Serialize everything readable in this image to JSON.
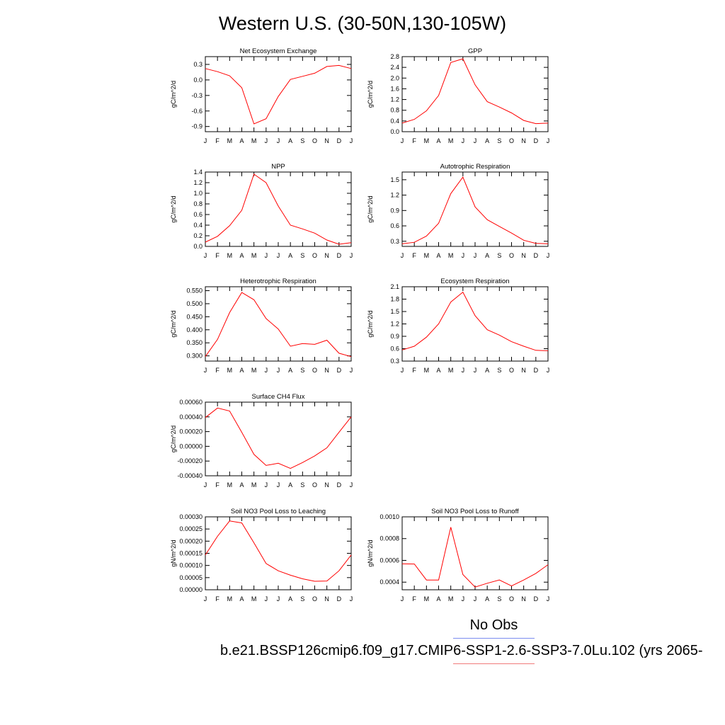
{
  "figure": {
    "title": "Western U.S. (30-50N,130-105W)",
    "legend": {
      "obs_label": "No Obs",
      "case_label": "b.e21.BSSP126cmip6.f09_g17.CMIP6-SSP1-2.6-SSP3-7.0Lu.102 (yrs 2065-",
      "obs_color": "#7b8cf0",
      "case_color": "#f07b7b"
    }
  },
  "chart_data": [
    {
      "type": "line",
      "title": "Net Ecosystem Exchange",
      "ylabel": "gC/m^2/d",
      "x": [
        "J",
        "F",
        "M",
        "A",
        "M",
        "J",
        "J",
        "A",
        "S",
        "O",
        "N",
        "D",
        "J"
      ],
      "ylim": [
        -1.0,
        0.45
      ],
      "yticks": [
        "0.3",
        "0.0",
        "-0.3",
        "-0.6",
        "-0.9"
      ],
      "yticks_values": [
        0.3,
        0.0,
        -0.3,
        -0.6,
        -0.9
      ],
      "series": [
        {
          "values": [
            0.22,
            0.16,
            0.08,
            -0.15,
            -0.85,
            -0.75,
            -0.32,
            0.01,
            0.07,
            0.13,
            0.26,
            0.28,
            0.22
          ],
          "color": "#ff0000"
        }
      ]
    },
    {
      "type": "line",
      "title": "GPP",
      "ylabel": "gC/m^2/d",
      "x": [
        "J",
        "F",
        "M",
        "A",
        "M",
        "J",
        "J",
        "A",
        "S",
        "O",
        "N",
        "D",
        "J"
      ],
      "ylim": [
        0.0,
        2.8
      ],
      "yticks": [
        "2.8",
        "2.4",
        "2.0",
        "1.6",
        "1.2",
        "0.8",
        "0.4",
        "0.0"
      ],
      "yticks_values": [
        2.8,
        2.4,
        2.0,
        1.6,
        1.2,
        0.8,
        0.4,
        0.0
      ],
      "series": [
        {
          "values": [
            0.32,
            0.46,
            0.78,
            1.35,
            2.58,
            2.72,
            1.75,
            1.12,
            0.92,
            0.7,
            0.42,
            0.3,
            0.32
          ],
          "color": "#ff0000"
        }
      ]
    },
    {
      "type": "line",
      "title": "NPP",
      "ylabel": "gC/m^2/d",
      "x": [
        "J",
        "F",
        "M",
        "A",
        "M",
        "J",
        "J",
        "A",
        "S",
        "O",
        "N",
        "D",
        "J"
      ],
      "ylim": [
        0.0,
        1.4
      ],
      "yticks": [
        "1.4",
        "1.2",
        "1.0",
        "0.8",
        "0.6",
        "0.4",
        "0.2",
        "0.0"
      ],
      "yticks_values": [
        1.4,
        1.2,
        1.0,
        0.8,
        0.6,
        0.4,
        0.2,
        0.0
      ],
      "series": [
        {
          "values": [
            0.08,
            0.19,
            0.39,
            0.68,
            1.36,
            1.2,
            0.76,
            0.4,
            0.33,
            0.25,
            0.12,
            0.04,
            0.07
          ],
          "color": "#ff0000"
        }
      ]
    },
    {
      "type": "line",
      "title": "Autotrophic Respiration",
      "ylabel": "gC/m^2/d",
      "x": [
        "J",
        "F",
        "M",
        "A",
        "M",
        "J",
        "J",
        "A",
        "S",
        "O",
        "N",
        "D",
        "J"
      ],
      "ylim": [
        0.2,
        1.65
      ],
      "yticks": [
        "1.5",
        "1.2",
        "0.9",
        "0.6",
        "0.3"
      ],
      "yticks_values": [
        1.5,
        1.2,
        0.9,
        0.6,
        0.3
      ],
      "series": [
        {
          "values": [
            0.25,
            0.28,
            0.4,
            0.65,
            1.23,
            1.55,
            0.97,
            0.72,
            0.59,
            0.46,
            0.32,
            0.26,
            0.25
          ],
          "color": "#ff0000"
        }
      ]
    },
    {
      "type": "line",
      "title": "Heterotrophic Respiration",
      "ylabel": "gC/m^2/d",
      "x": [
        "J",
        "F",
        "M",
        "A",
        "M",
        "J",
        "J",
        "A",
        "S",
        "O",
        "N",
        "D",
        "J"
      ],
      "ylim": [
        0.28,
        0.565
      ],
      "yticks": [
        "0.550",
        "0.500",
        "0.450",
        "0.400",
        "0.350",
        "0.300"
      ],
      "yticks_values": [
        0.55,
        0.5,
        0.45,
        0.4,
        0.35,
        0.3
      ],
      "series": [
        {
          "values": [
            0.297,
            0.363,
            0.466,
            0.543,
            0.515,
            0.443,
            0.403,
            0.337,
            0.347,
            0.344,
            0.36,
            0.31,
            0.297
          ],
          "color": "#ff0000"
        }
      ]
    },
    {
      "type": "line",
      "title": "Ecosystem Respiration",
      "ylabel": "gC/m^2/d",
      "x": [
        "J",
        "F",
        "M",
        "A",
        "M",
        "J",
        "J",
        "A",
        "S",
        "O",
        "N",
        "D",
        "J"
      ],
      "ylim": [
        0.3,
        2.1
      ],
      "yticks": [
        "2.1",
        "1.8",
        "1.5",
        "1.2",
        "0.9",
        "0.6",
        "0.3"
      ],
      "yticks_values": [
        2.1,
        1.8,
        1.5,
        1.2,
        0.9,
        0.6,
        0.3
      ],
      "series": [
        {
          "values": [
            0.57,
            0.66,
            0.88,
            1.2,
            1.73,
            1.97,
            1.4,
            1.06,
            0.93,
            0.77,
            0.66,
            0.56,
            0.55
          ],
          "color": "#ff0000"
        }
      ]
    },
    {
      "type": "line",
      "title": "Surface CH4 Flux",
      "ylabel": "gC/m^2/d",
      "x": [
        "J",
        "F",
        "M",
        "A",
        "M",
        "J",
        "J",
        "A",
        "S",
        "O",
        "N",
        "D",
        "J"
      ],
      "ylim": [
        -0.0004,
        0.0006
      ],
      "yticks": [
        "0.00060",
        "0.00040",
        "0.00020",
        "0.00000",
        "-0.00020",
        "-0.00040"
      ],
      "yticks_values": [
        0.0006,
        0.0004,
        0.0002,
        0.0,
        -0.0002,
        -0.0004
      ],
      "series": [
        {
          "values": [
            0.00039,
            0.00052,
            0.00048,
            0.00019,
            -0.00011,
            -0.00026,
            -0.00023,
            -0.0003,
            -0.00022,
            -0.00013,
            -2e-05,
            0.00019,
            0.0004
          ],
          "color": "#ff0000"
        }
      ]
    },
    {
      "type": "line",
      "title": "Soil NO3 Pool Loss to Leaching",
      "ylabel": "gN/m^2/d",
      "x": [
        "J",
        "F",
        "M",
        "A",
        "M",
        "J",
        "J",
        "A",
        "S",
        "O",
        "N",
        "D",
        "J"
      ],
      "ylim": [
        0.0,
        0.0003
      ],
      "yticks": [
        "0.00030",
        "0.00025",
        "0.00020",
        "0.00015",
        "0.00010",
        "0.00005",
        "0.00000"
      ],
      "yticks_values": [
        0.0003,
        0.00025,
        0.0002,
        0.00015,
        0.0001,
        5e-05,
        0.0
      ],
      "series": [
        {
          "values": [
            0.000143,
            0.00022,
            0.000283,
            0.000275,
            0.000193,
            0.000108,
            7.8e-05,
            6e-05,
            4.5e-05,
            3.5e-05,
            3.6e-05,
            7.8e-05,
            0.000143
          ],
          "color": "#ff0000"
        }
      ]
    },
    {
      "type": "line",
      "title": "Soil NO3 Pool Loss to Runoff",
      "ylabel": "gN/m^2/d",
      "x": [
        "J",
        "F",
        "M",
        "A",
        "M",
        "J",
        "J",
        "A",
        "S",
        "O",
        "N",
        "D",
        "J"
      ],
      "ylim": [
        0.00033,
        0.001
      ],
      "yticks": [
        "0.0010",
        "0.0008",
        "0.0006",
        "0.0004"
      ],
      "yticks_values": [
        0.001,
        0.0008,
        0.0006,
        0.0004
      ],
      "series": [
        {
          "values": [
            0.000568,
            0.000567,
            0.00042,
            0.00042,
            0.000905,
            0.00047,
            0.000355,
            0.00039,
            0.00042,
            0.000365,
            0.00042,
            0.00048,
            0.00056
          ],
          "color": "#ff0000"
        }
      ]
    }
  ]
}
